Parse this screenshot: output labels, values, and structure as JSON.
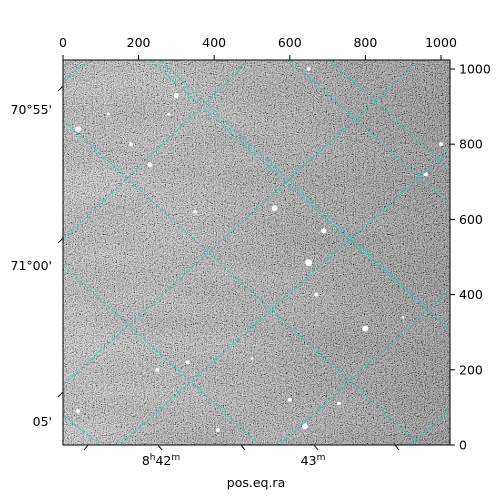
{
  "image": {
    "pixel_range": [
      0,
      1024
    ],
    "background": "star-field"
  },
  "axes": {
    "top_ticks": [
      "0",
      "200",
      "400",
      "600",
      "800",
      "1000"
    ],
    "right_ticks": [
      "0",
      "200",
      "400",
      "600",
      "800",
      "1000"
    ],
    "left_ticks": [
      "70°55'",
      "71°00'",
      "05'"
    ],
    "bottom_ticks": [
      {
        "main": "8",
        "sup1": "h",
        "mid": "42",
        "sup2": "m"
      },
      {
        "main": "43",
        "sup1": "",
        "mid": "",
        "sup2": "m"
      }
    ],
    "xlabel": "pos.eq.ra"
  },
  "grid": {
    "color": "#2ec4c4",
    "style": "dashed"
  },
  "stars": [
    {
      "x": 650,
      "y": 1000,
      "r": 2
    },
    {
      "x": 300,
      "y": 930,
      "r": 2.5
    },
    {
      "x": 40,
      "y": 840,
      "r": 3
    },
    {
      "x": 230,
      "y": 745,
      "r": 2.5
    },
    {
      "x": 560,
      "y": 630,
      "r": 3
    },
    {
      "x": 690,
      "y": 570,
      "r": 2.5
    },
    {
      "x": 650,
      "y": 485,
      "r": 3.5
    },
    {
      "x": 800,
      "y": 310,
      "r": 3
    },
    {
      "x": 640,
      "y": 50,
      "r": 3
    },
    {
      "x": 410,
      "y": 40,
      "r": 2
    },
    {
      "x": 250,
      "y": 200,
      "r": 2
    },
    {
      "x": 600,
      "y": 120,
      "r": 2
    },
    {
      "x": 1000,
      "y": 800,
      "r": 2
    },
    {
      "x": 330,
      "y": 220,
      "r": 2
    },
    {
      "x": 180,
      "y": 800,
      "r": 2
    },
    {
      "x": 960,
      "y": 720,
      "r": 2
    },
    {
      "x": 40,
      "y": 90,
      "r": 2
    },
    {
      "x": 730,
      "y": 110,
      "r": 2
    },
    {
      "x": 280,
      "y": 880,
      "r": 1.5
    },
    {
      "x": 350,
      "y": 620,
      "r": 2
    },
    {
      "x": 670,
      "y": 400,
      "r": 2
    },
    {
      "x": 120,
      "y": 880,
      "r": 1.5
    },
    {
      "x": 900,
      "y": 340,
      "r": 1.5
    },
    {
      "x": 500,
      "y": 230,
      "r": 1.5
    }
  ]
}
